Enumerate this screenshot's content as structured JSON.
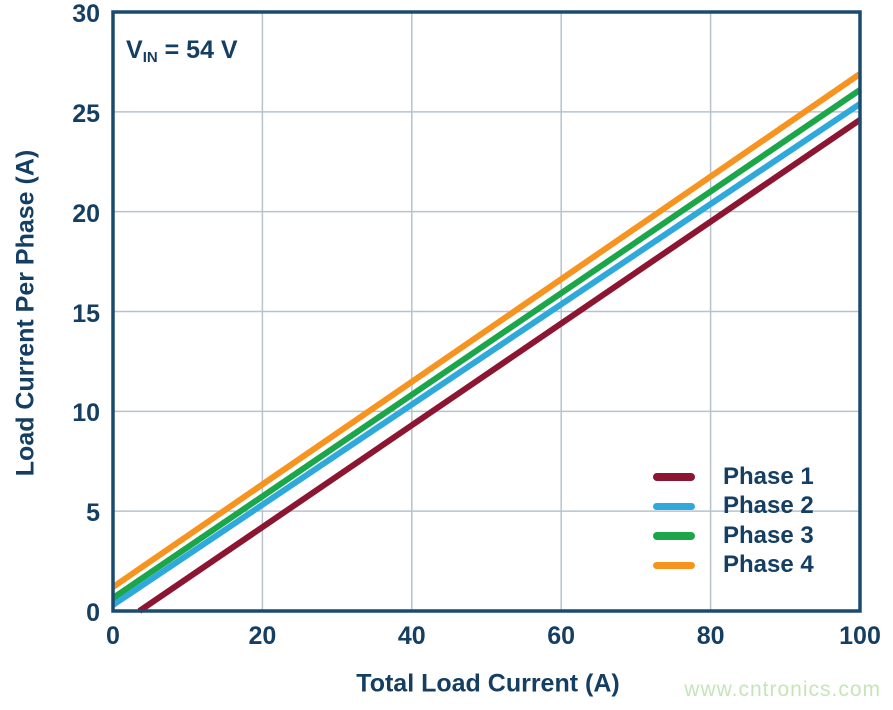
{
  "figure": {
    "annotation": {
      "prefix": "V",
      "subscript": "IN",
      "suffix": " = 54 V"
    },
    "watermark": "www.cntronics.com"
  },
  "colors": {
    "text_navy": "#153E63",
    "axis_border": "#1B4A6F",
    "gridline": "#B6C2CC",
    "background": "#FFFFFF",
    "watermark_green": "#C7E4B8"
  },
  "chart_data": {
    "type": "line",
    "title": "",
    "xlabel": "Total Load Current (A)",
    "ylabel": "Load Current Per Phase (A)",
    "xlim": [
      0,
      100
    ],
    "ylim": [
      0,
      30
    ],
    "xticks": [
      0,
      20,
      40,
      60,
      80,
      100
    ],
    "yticks": [
      0,
      5,
      10,
      15,
      20,
      25,
      30
    ],
    "grid": true,
    "legend_position": "lower right",
    "annotation_text": "VIN = 54 V",
    "x": [
      0,
      100
    ],
    "series": [
      {
        "name": "Phase 1",
        "color": "#8C1631",
        "values": [
          -0.9,
          24.6
        ]
      },
      {
        "name": "Phase 2",
        "color": "#2FA9DC",
        "values": [
          0.3,
          25.4
        ]
      },
      {
        "name": "Phase 3",
        "color": "#1CA64A",
        "values": [
          0.65,
          26.1
        ]
      },
      {
        "name": "Phase 4",
        "color": "#F79420",
        "values": [
          1.2,
          26.9
        ]
      }
    ],
    "note": "Lines are linear between the two x endpoints; values below ylim[0] are clipped at the x-axis."
  }
}
